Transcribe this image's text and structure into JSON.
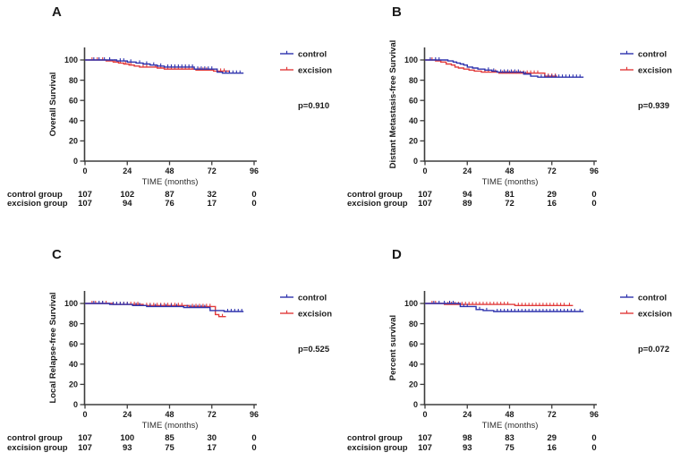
{
  "figure": {
    "background": "#ffffff",
    "text_color": "#1a1a1a",
    "axis_color": "#3d3d3d",
    "xlabel": "TIME (months)",
    "xticks": [
      0,
      24,
      48,
      72,
      96
    ],
    "yticks": [
      0,
      20,
      40,
      60,
      80,
      100
    ],
    "xlim": [
      0,
      96
    ],
    "ylim": [
      0,
      100
    ],
    "legend": [
      {
        "name": "control",
        "label": "control",
        "color": "#2e33ad"
      },
      {
        "name": "excision",
        "label": "excision",
        "color": "#e13b3b"
      }
    ]
  },
  "chart_data": [
    {
      "panel": "A",
      "type": "line",
      "subtype": "kaplan-meier-step",
      "ylabel": "Overall Survival",
      "xlabel": "TIME (months)",
      "p_value": "p=0.910",
      "series": [
        {
          "name": "control",
          "color": "#2e33ad",
          "steps": [
            [
              0,
              100
            ],
            [
              16,
              100
            ],
            [
              18,
              99
            ],
            [
              24,
              98
            ],
            [
              29,
              97
            ],
            [
              33,
              96
            ],
            [
              37,
              95
            ],
            [
              41,
              94
            ],
            [
              45,
              93
            ],
            [
              60,
              93
            ],
            [
              62,
              91
            ],
            [
              73,
              91
            ],
            [
              75,
              88
            ],
            [
              78,
              87
            ],
            [
              90,
              87
            ]
          ],
          "censors": [
            5,
            8,
            11,
            14,
            20,
            22,
            26,
            31,
            35,
            39,
            43,
            47,
            49,
            51,
            53,
            55,
            57,
            59,
            61,
            64,
            66,
            68,
            70,
            72,
            80,
            82,
            84,
            86,
            88
          ]
        },
        {
          "name": "excision",
          "color": "#e13b3b",
          "steps": [
            [
              0,
              100
            ],
            [
              12,
              99
            ],
            [
              16,
              98
            ],
            [
              19,
              97
            ],
            [
              22,
              96
            ],
            [
              25,
              95
            ],
            [
              28,
              94
            ],
            [
              31,
              93
            ],
            [
              38,
              93
            ],
            [
              41,
              92
            ],
            [
              45,
              91
            ],
            [
              60,
              91
            ],
            [
              63,
              90
            ],
            [
              71,
              90
            ],
            [
              73,
              89
            ],
            [
              82,
              88
            ]
          ],
          "censors": [
            4,
            7,
            10,
            14,
            17,
            20,
            23,
            26,
            33,
            35,
            40,
            43,
            47,
            49,
            51,
            53,
            55,
            57,
            59,
            61,
            65,
            67,
            69,
            75,
            77,
            79
          ]
        }
      ],
      "risk_table": [
        {
          "label": "control group",
          "values": [
            107,
            102,
            87,
            32,
            0
          ]
        },
        {
          "label": "excision group",
          "values": [
            107,
            94,
            76,
            17,
            0
          ]
        }
      ]
    },
    {
      "panel": "B",
      "type": "line",
      "subtype": "kaplan-meier-step",
      "ylabel": "Distant Metastasis-free Survival",
      "xlabel": "TIME (months)",
      "p_value": "p=0.939",
      "series": [
        {
          "name": "control",
          "color": "#2e33ad",
          "steps": [
            [
              0,
              100
            ],
            [
              10,
              100
            ],
            [
              13,
              99
            ],
            [
              16,
              98
            ],
            [
              18,
              97
            ],
            [
              20,
              96
            ],
            [
              22,
              95
            ],
            [
              24,
              93
            ],
            [
              27,
              92
            ],
            [
              30,
              91
            ],
            [
              34,
              90
            ],
            [
              38,
              89
            ],
            [
              41,
              88
            ],
            [
              54,
              88
            ],
            [
              56,
              86
            ],
            [
              60,
              84
            ],
            [
              64,
              83
            ],
            [
              90,
              83
            ]
          ],
          "censors": [
            3,
            6,
            8,
            36,
            39,
            43,
            45,
            47,
            49,
            51,
            53,
            57,
            66,
            68,
            70,
            72,
            74,
            76,
            78,
            80,
            82,
            84,
            86,
            88
          ]
        },
        {
          "name": "excision",
          "color": "#e13b3b",
          "steps": [
            [
              0,
              100
            ],
            [
              6,
              99
            ],
            [
              9,
              98
            ],
            [
              12,
              96
            ],
            [
              15,
              95
            ],
            [
              17,
              93
            ],
            [
              19,
              92
            ],
            [
              22,
              91
            ],
            [
              25,
              90
            ],
            [
              28,
              89
            ],
            [
              32,
              88
            ],
            [
              42,
              87
            ],
            [
              66,
              87
            ],
            [
              68,
              84
            ],
            [
              75,
              84
            ]
          ],
          "censors": [
            4,
            34,
            36,
            38,
            40,
            44,
            46,
            48,
            50,
            52,
            54,
            56,
            58,
            60,
            62,
            64,
            70,
            72,
            74
          ]
        }
      ],
      "risk_table": [
        {
          "label": "control group",
          "values": [
            107,
            94,
            81,
            29,
            0
          ]
        },
        {
          "label": "excision group",
          "values": [
            107,
            89,
            72,
            16,
            0
          ]
        }
      ]
    },
    {
      "panel": "C",
      "type": "line",
      "subtype": "kaplan-meier-step",
      "ylabel": "Local Relapse-free Survival",
      "xlabel": "TIME (months)",
      "p_value": "p=0.525",
      "series": [
        {
          "name": "control",
          "color": "#2e33ad",
          "steps": [
            [
              0,
              100
            ],
            [
              12,
              100
            ],
            [
              14,
              99
            ],
            [
              25,
              99
            ],
            [
              27,
              98
            ],
            [
              33,
              98
            ],
            [
              35,
              97
            ],
            [
              54,
              97
            ],
            [
              56,
              96
            ],
            [
              69,
              96
            ],
            [
              71,
              93
            ],
            [
              77,
              93
            ],
            [
              79,
              92
            ],
            [
              90,
              92
            ]
          ],
          "censors": [
            5,
            8,
            10,
            16,
            18,
            20,
            22,
            24,
            29,
            31,
            37,
            40,
            43,
            46,
            49,
            52,
            58,
            60,
            62,
            64,
            66,
            68,
            81,
            83,
            85,
            87,
            89
          ]
        },
        {
          "name": "excision",
          "color": "#e13b3b",
          "steps": [
            [
              0,
              100
            ],
            [
              14,
              100
            ],
            [
              16,
              99
            ],
            [
              31,
              99
            ],
            [
              33,
              98
            ],
            [
              57,
              98
            ],
            [
              59,
              97
            ],
            [
              72,
              97
            ],
            [
              74,
              89
            ],
            [
              76,
              87
            ],
            [
              80,
              87
            ]
          ],
          "censors": [
            4,
            6,
            10,
            12,
            18,
            20,
            22,
            24,
            26,
            28,
            30,
            35,
            37,
            39,
            41,
            43,
            45,
            47,
            49,
            51,
            53,
            55,
            61,
            63,
            65,
            67,
            69,
            71,
            78
          ]
        }
      ],
      "risk_table": [
        {
          "label": "control group",
          "values": [
            107,
            100,
            85,
            30,
            0
          ]
        },
        {
          "label": "excision group",
          "values": [
            107,
            93,
            75,
            17,
            0
          ]
        }
      ]
    },
    {
      "panel": "D",
      "type": "line",
      "subtype": "kaplan-meier-step",
      "ylabel": "Percent survival",
      "xlabel": "TIME (months)",
      "p_value": "p=0.072",
      "series": [
        {
          "name": "control",
          "color": "#2e33ad",
          "steps": [
            [
              0,
              100
            ],
            [
              18,
              100
            ],
            [
              20,
              97
            ],
            [
              27,
              97
            ],
            [
              29,
              94
            ],
            [
              33,
              93
            ],
            [
              37,
              93
            ],
            [
              39,
              92
            ],
            [
              90,
              92
            ]
          ],
          "censors": [
            5,
            8,
            11,
            14,
            16,
            22,
            24,
            31,
            35,
            41,
            43,
            45,
            47,
            49,
            51,
            53,
            55,
            57,
            59,
            61,
            63,
            65,
            67,
            69,
            71,
            73,
            75,
            77,
            79,
            81,
            83,
            85,
            88
          ]
        },
        {
          "name": "excision",
          "color": "#e13b3b",
          "steps": [
            [
              0,
              100
            ],
            [
              9,
              100
            ],
            [
              11,
              99
            ],
            [
              49,
              99
            ],
            [
              51,
              98
            ],
            [
              84,
              98
            ]
          ],
          "censors": [
            4,
            6,
            13,
            15,
            17,
            19,
            21,
            23,
            25,
            27,
            29,
            31,
            33,
            35,
            37,
            39,
            41,
            43,
            45,
            47,
            53,
            55,
            57,
            59,
            61,
            63,
            65,
            67,
            69,
            71,
            73,
            75,
            77,
            79,
            82
          ]
        }
      ],
      "risk_table": [
        {
          "label": "control group",
          "values": [
            107,
            98,
            83,
            29,
            0
          ]
        },
        {
          "label": "excision group",
          "values": [
            107,
            93,
            75,
            16,
            0
          ]
        }
      ]
    }
  ]
}
